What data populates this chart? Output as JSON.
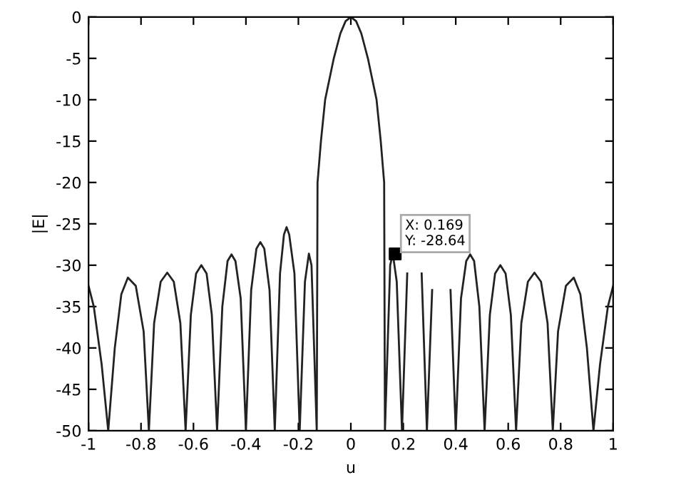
{
  "chart_data": {
    "type": "line",
    "xlabel": "u",
    "ylabel": "|E|",
    "xlim": [
      -1,
      1
    ],
    "ylim": [
      -50,
      0
    ],
    "xticks": [
      -1,
      -0.8,
      -0.6,
      -0.4,
      -0.2,
      0,
      0.2,
      0.4,
      0.6,
      0.8,
      1
    ],
    "yticks": [
      0,
      -5,
      -10,
      -15,
      -20,
      -25,
      -30,
      -35,
      -40,
      -45,
      -50
    ],
    "grid": false,
    "legend": false,
    "series": [
      {
        "color": "#222222",
        "line_style": "solid",
        "marker": "none",
        "x": [
          -1,
          -0.98,
          -0.95,
          -0.925,
          -0.9,
          -0.875,
          -0.85,
          -0.82,
          -0.79,
          -0.77,
          -0.75,
          -0.725,
          -0.7,
          -0.675,
          -0.65,
          -0.63,
          -0.61,
          -0.59,
          -0.57,
          -0.55,
          -0.53,
          -0.51,
          -0.49,
          -0.47,
          -0.455,
          -0.44,
          -0.42,
          -0.4,
          -0.38,
          -0.36,
          -0.345,
          -0.33,
          -0.31,
          -0.29,
          -0.27,
          -0.255,
          -0.245,
          -0.235,
          -0.215,
          -0.195,
          -0.175,
          -0.16,
          -0.15,
          -0.13,
          -0.127,
          -0.114,
          -0.098,
          -0.065,
          -0.04,
          -0.02,
          0,
          0.02,
          0.04,
          0.065,
          0.098,
          0.114,
          0.127,
          0.13,
          0.15,
          0.16,
          0.175,
          0.195,
          0.215,
          0.235,
          0.245,
          0.255,
          0.27,
          0.29,
          0.31,
          0.33,
          0.345,
          0.36,
          0.38,
          0.4,
          0.42,
          0.44,
          0.455,
          0.47,
          0.49,
          0.51,
          0.53,
          0.55,
          0.57,
          0.59,
          0.61,
          0.63,
          0.65,
          0.675,
          0.7,
          0.725,
          0.75,
          0.77,
          0.79,
          0.82,
          0.85,
          0.875,
          0.9,
          0.925,
          0.95,
          0.98,
          1
        ],
        "values": [
          -32.5,
          -35,
          -42,
          -50,
          -40,
          -33.5,
          -31.5,
          -32.5,
          -38,
          -50,
          -37,
          -32,
          -30.9,
          -32,
          -37,
          -50,
          -36,
          -31,
          -30,
          -31,
          -36,
          -50,
          -35,
          -29.5,
          -28.7,
          -29.5,
          -34,
          -50,
          -33,
          -28,
          -27.2,
          -28,
          -33,
          -50,
          -31,
          -26.3,
          -25.4,
          -26.3,
          -31,
          -50,
          -32,
          -28.6,
          -30,
          -50,
          -20,
          -15,
          -10,
          -5,
          -2,
          -0.5,
          0,
          -0.5,
          -2,
          -5,
          -10,
          -15,
          -20,
          -50,
          -30,
          -28.6,
          -32,
          -50,
          -31,
          null,
          null,
          null,
          -31,
          -50,
          -33,
          null,
          null,
          null,
          -33,
          -50,
          -34,
          -29.5,
          -28.7,
          -29.5,
          -35,
          -50,
          -36,
          -31,
          -30,
          -31,
          -36,
          -50,
          -37,
          -32,
          -30.9,
          -32,
          -37,
          -50,
          -38,
          -32.5,
          -31.5,
          -33.5,
          -40,
          -50,
          -42,
          -35,
          -32.5
        ]
      },
      {
        "type": "scatter",
        "color": "#000000",
        "marker": "square",
        "x": [
          0.169
        ],
        "values": [
          -28.64
        ]
      }
    ],
    "annotations": [
      {
        "text": "X: 0.169\nY: -28.64",
        "x": 0.169,
        "y": -28.64
      }
    ]
  }
}
